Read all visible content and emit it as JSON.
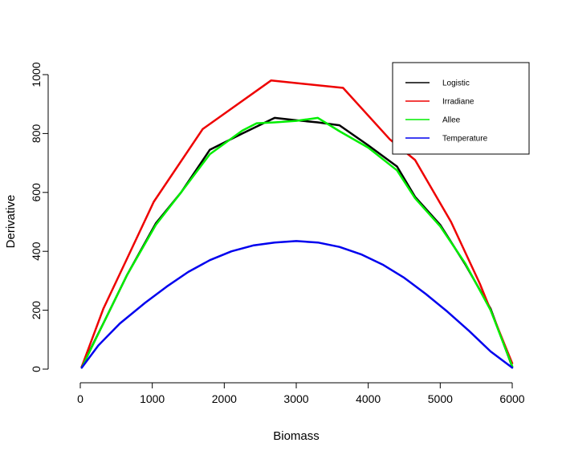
{
  "chart_data": {
    "type": "line",
    "title": "",
    "xlabel": "Biomass",
    "ylabel": "Derivative",
    "xlim": [
      0,
      6000
    ],
    "ylim": [
      0,
      1000
    ],
    "x_ticks": [
      0,
      1000,
      2000,
      3000,
      4000,
      5000,
      6000
    ],
    "y_ticks": [
      0,
      200,
      400,
      600,
      800,
      1000
    ],
    "grid": false,
    "legend_position": "top-right",
    "series": [
      {
        "name": "Logistic",
        "color": "#000000",
        "x": [
          20,
          350,
          650,
          1050,
          1400,
          1800,
          2250,
          2700,
          3000,
          3300,
          3600,
          4000,
          4400,
          4650,
          5000,
          5350,
          5700,
          6000
        ],
        "y": [
          8,
          170,
          320,
          495,
          600,
          745,
          800,
          853,
          845,
          838,
          828,
          760,
          688,
          585,
          490,
          355,
          205,
          8
        ]
      },
      {
        "name": "Irradiane",
        "color": "#ee0000",
        "x": [
          20,
          320,
          620,
          1020,
          1700,
          2650,
          3650,
          4300,
          4650,
          5150,
          5550,
          6000
        ],
        "y": [
          8,
          205,
          360,
          568,
          815,
          980,
          955,
          780,
          710,
          500,
          290,
          20
        ]
      },
      {
        "name": "Allee",
        "color": "#00ee00",
        "x": [
          20,
          350,
          650,
          1050,
          1400,
          1800,
          2250,
          2450,
          2700,
          3000,
          3300,
          3600,
          4000,
          4400,
          4650,
          5000,
          5350,
          5700,
          6000
        ],
        "y": [
          5,
          170,
          320,
          490,
          600,
          730,
          810,
          835,
          838,
          843,
          853,
          808,
          752,
          675,
          580,
          485,
          358,
          200,
          10
        ]
      },
      {
        "name": "Temperature",
        "color": "#0000ee",
        "x": [
          20,
          250,
          550,
          900,
          1200,
          1500,
          1800,
          2100,
          2400,
          2700,
          3000,
          3300,
          3600,
          3900,
          4200,
          4500,
          4800,
          5100,
          5400,
          5700,
          6000
        ],
        "y": [
          5,
          80,
          155,
          225,
          280,
          330,
          370,
          400,
          420,
          430,
          435,
          430,
          415,
          390,
          355,
          310,
          255,
          195,
          130,
          60,
          5
        ]
      }
    ]
  }
}
